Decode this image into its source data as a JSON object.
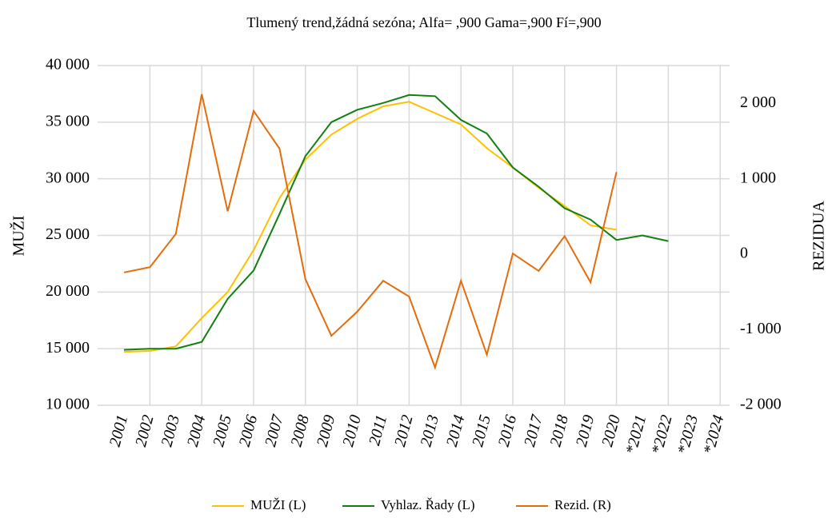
{
  "chart_data": {
    "type": "line",
    "title": "Tlumený trend,žádná sezóna; Alfa=  ,900 Gama=,900 Fí=,900",
    "y_label": "MUŽI",
    "y2_label": "REZIDUA",
    "categories": [
      "2001",
      "2002",
      "2003",
      "2004",
      "2005",
      "2006",
      "2007",
      "2008",
      "2009",
      "2010",
      "2011",
      "2012",
      "2013",
      "2014",
      "2015",
      "2016",
      "2017",
      "2018",
      "2019",
      "2020",
      "*2021",
      "*2022",
      "*2023",
      "*2024"
    ],
    "series": [
      {
        "name": "MUŽI (L)",
        "color": "#ffc000",
        "values": [
          14720,
          14800,
          15200,
          17700,
          20000,
          23700,
          28300,
          31700,
          33900,
          35300,
          36400,
          36800,
          35800,
          34800,
          32700,
          31000,
          29200,
          27600,
          25900,
          25500,
          null,
          null,
          null,
          null
        ]
      },
      {
        "name": "Vyhlaz. Řady (L)",
        "color": "#108010",
        "values": [
          14900,
          15000,
          15000,
          15600,
          19400,
          21900,
          26900,
          32000,
          35000,
          36100,
          36700,
          37400,
          37300,
          35200,
          34000,
          31000,
          29300,
          27400,
          26400,
          24600,
          25000,
          24500,
          null,
          null
        ]
      },
      {
        "name": "Rezid. (R)",
        "color": "#e46c0a",
        "axis": "y2",
        "values": [
          -240,
          -170,
          270,
          2120,
          570,
          1900,
          1400,
          -330,
          -1080,
          -760,
          -350,
          -560,
          -1500,
          -350,
          -1330,
          10,
          -220,
          240,
          -370,
          1090,
          null,
          null,
          null,
          null
        ]
      }
    ],
    "ylim": [
      10000,
      40000
    ],
    "yticks": [
      {
        "value": 10000,
        "label": "10 000"
      },
      {
        "value": 15000,
        "label": "15 000"
      },
      {
        "value": 20000,
        "label": "20 000"
      },
      {
        "value": 25000,
        "label": "25 000"
      },
      {
        "value": 30000,
        "label": "30 000"
      },
      {
        "value": 35000,
        "label": "35 000"
      },
      {
        "value": 40000,
        "label": "40 000"
      }
    ],
    "y2lim": [
      -2000,
      2500
    ],
    "y2ticks": [
      {
        "value": -2000,
        "label": "-2 000"
      },
      {
        "value": -1000,
        "label": "-1 000"
      },
      0,
      {
        "value": 1000,
        "label": "1 000"
      },
      {
        "value": 2000,
        "label": "2 000"
      }
    ],
    "grid": true,
    "legend": "bottom"
  }
}
